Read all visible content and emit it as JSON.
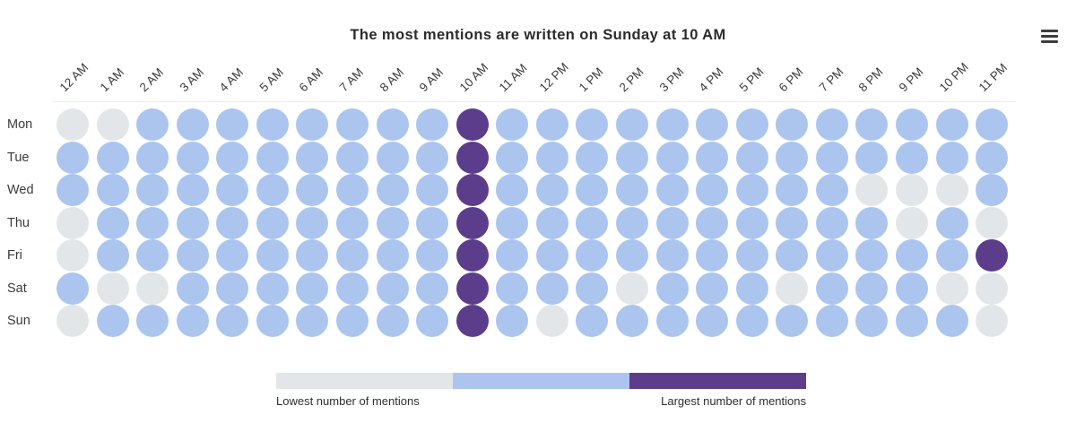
{
  "header": {
    "title": "The most mentions are written on Sunday at 10 AM",
    "menu_icon": "hamburger-menu-icon"
  },
  "chart_data": {
    "type": "heatmap",
    "title": "The most mentions are written on Sunday at 10 AM",
    "x_labels": [
      "12 AM",
      "1 AM",
      "2 AM",
      "3 AM",
      "4 AM",
      "5 AM",
      "6 AM",
      "7 AM",
      "8 AM",
      "9 AM",
      "10 AM",
      "11 AM",
      "12 PM",
      "1 PM",
      "2 PM",
      "3 PM",
      "4 PM",
      "5 PM",
      "6 PM",
      "7 PM",
      "8 PM",
      "9 PM",
      "10 PM",
      "11 PM"
    ],
    "y_labels": [
      "Mon",
      "Tue",
      "Wed",
      "Thu",
      "Fri",
      "Sat",
      "Sun"
    ],
    "value_meaning": {
      "0": "lowest",
      "1": "medium",
      "2": "largest"
    },
    "grid": [
      [
        0,
        0,
        1,
        1,
        1,
        1,
        1,
        1,
        1,
        1,
        2,
        1,
        1,
        1,
        1,
        1,
        1,
        1,
        1,
        1,
        1,
        1,
        1,
        1
      ],
      [
        1,
        1,
        1,
        1,
        1,
        1,
        1,
        1,
        1,
        1,
        2,
        1,
        1,
        1,
        1,
        1,
        1,
        1,
        1,
        1,
        1,
        1,
        1,
        1
      ],
      [
        1,
        1,
        1,
        1,
        1,
        1,
        1,
        1,
        1,
        1,
        2,
        1,
        1,
        1,
        1,
        1,
        1,
        1,
        1,
        1,
        0,
        0,
        0,
        1
      ],
      [
        0,
        1,
        1,
        1,
        1,
        1,
        1,
        1,
        1,
        1,
        2,
        1,
        1,
        1,
        1,
        1,
        1,
        1,
        1,
        1,
        1,
        0,
        1,
        0
      ],
      [
        0,
        1,
        1,
        1,
        1,
        1,
        1,
        1,
        1,
        1,
        2,
        1,
        1,
        1,
        1,
        1,
        1,
        1,
        1,
        1,
        1,
        1,
        1,
        2
      ],
      [
        1,
        0,
        0,
        1,
        1,
        1,
        1,
        1,
        1,
        1,
        2,
        1,
        1,
        1,
        0,
        1,
        1,
        1,
        0,
        1,
        1,
        1,
        0,
        0
      ],
      [
        0,
        1,
        1,
        1,
        1,
        1,
        1,
        1,
        1,
        1,
        2,
        1,
        0,
        1,
        1,
        1,
        1,
        1,
        1,
        1,
        1,
        1,
        1,
        0
      ]
    ],
    "colors": {
      "lowest": "#e3e6e9",
      "medium": "#abc5ef",
      "largest": "#5b3d8c"
    },
    "legend": {
      "left_label": "Lowest number of mentions",
      "right_label": "Largest number of mentions",
      "levels": [
        "lowest",
        "medium",
        "largest"
      ]
    },
    "grid_lines": "off",
    "legend_position": "bottom-center"
  }
}
